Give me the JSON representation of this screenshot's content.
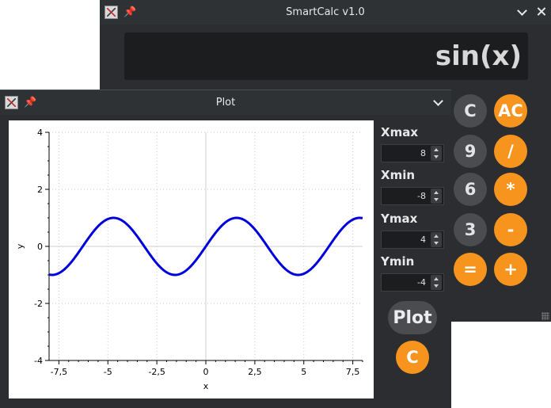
{
  "calculator": {
    "title": "SmartCalc v1.0",
    "display": "sin(x)",
    "buttons": [
      "C",
      "AC",
      "9",
      "/",
      "6",
      "*",
      "3",
      "-",
      "=",
      "+"
    ]
  },
  "plot_window": {
    "title": "Plot",
    "fields": [
      {
        "label": "Xmax",
        "value": "8"
      },
      {
        "label": "Xmin",
        "value": "-8"
      },
      {
        "label": "Ymax",
        "value": "4"
      },
      {
        "label": "Ymin",
        "value": "-4"
      }
    ],
    "plot_button": "Plot",
    "clear_button": "C"
  },
  "chart_data": {
    "type": "line",
    "function": "sin(x)",
    "xlabel": "x",
    "ylabel": "y",
    "xlim": [
      -8,
      8
    ],
    "ylim": [
      -4,
      4
    ],
    "x_ticks": [
      "-7,5",
      "-5",
      "-2,5",
      "0",
      "2,5",
      "5",
      "7,5"
    ],
    "y_ticks": [
      "-4",
      "-2",
      "0",
      "2",
      "4"
    ],
    "x_tick_values": [
      -7.5,
      -5,
      -2.5,
      0,
      2.5,
      5,
      7.5
    ],
    "y_tick_values": [
      -4,
      -2,
      0,
      2,
      4
    ],
    "grid": true,
    "series_color": "#0000dd"
  }
}
